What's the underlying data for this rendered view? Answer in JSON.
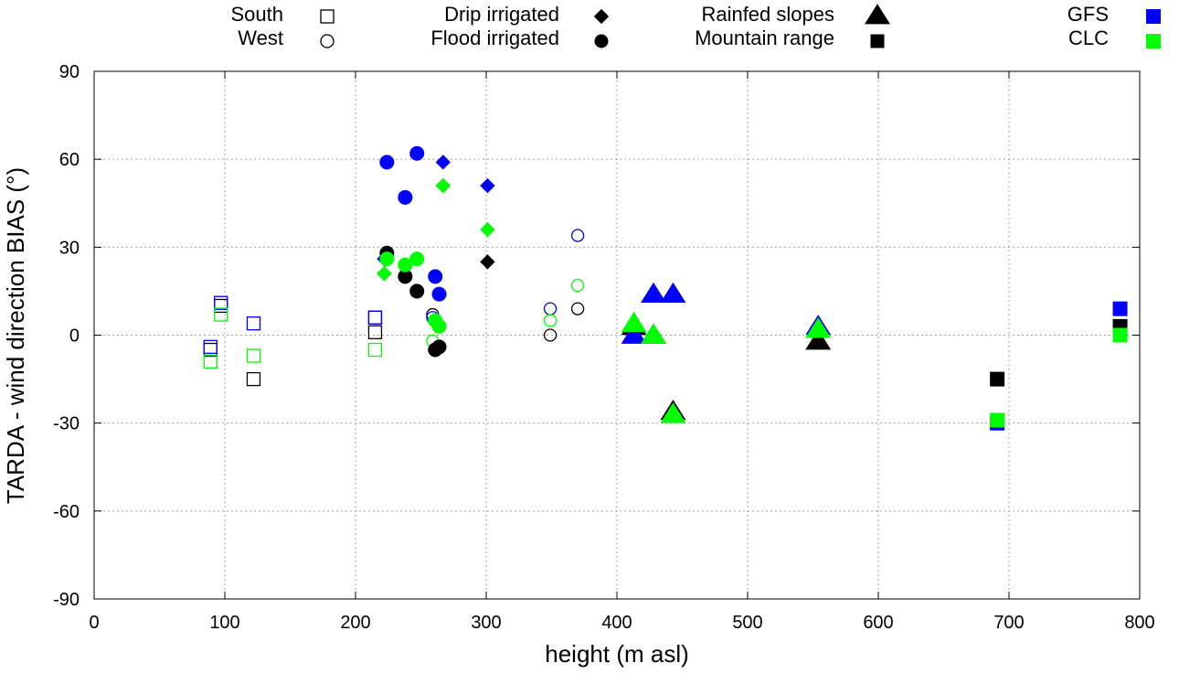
{
  "chart_data": {
    "type": "scatter",
    "title": "",
    "xlabel": "height (m asl)",
    "ylabel": "TARDA - wind direction BIAS (°)",
    "xlim": [
      0,
      800
    ],
    "ylim": [
      -90,
      90
    ],
    "xticks": [
      0,
      100,
      200,
      300,
      400,
      500,
      600,
      700,
      800
    ],
    "yticks": [
      -90,
      -60,
      -30,
      0,
      30,
      60,
      90
    ],
    "grid": true,
    "colors": {
      "TARDA": "#000000",
      "GFS": "#0000ff",
      "CLC": "#00ff00"
    },
    "legend_shapes": [
      {
        "label": "South",
        "shape": "square",
        "filled": false
      },
      {
        "label": "West",
        "shape": "circle",
        "filled": false
      },
      {
        "label": "Drip irrigated",
        "shape": "diamond",
        "filled": true
      },
      {
        "label": "Flood irrigated",
        "shape": "circle",
        "filled": true
      },
      {
        "label": "Rainfed slopes",
        "shape": "triangle",
        "filled": true
      },
      {
        "label": "Mountain range",
        "shape": "square",
        "filled": true
      }
    ],
    "legend_colors": [
      {
        "label": "GFS",
        "color": "#0000ff"
      },
      {
        "label": "CLC",
        "color": "#00ff00"
      }
    ],
    "series": [
      {
        "name": "South - TARDA",
        "shape": "square",
        "filled": false,
        "color": "#000000",
        "points": [
          [
            89,
            -5
          ],
          [
            97,
            10
          ],
          [
            122,
            -15
          ],
          [
            215,
            1
          ],
          [
            215,
            6
          ]
        ]
      },
      {
        "name": "South - GFS",
        "shape": "square",
        "filled": false,
        "color": "#0000ff",
        "points": [
          [
            89,
            -4
          ],
          [
            97,
            11
          ],
          [
            122,
            4
          ],
          [
            215,
            6
          ]
        ]
      },
      {
        "name": "South - CLC",
        "shape": "square",
        "filled": false,
        "color": "#00ff00",
        "points": [
          [
            89,
            -9
          ],
          [
            97,
            7
          ],
          [
            122,
            -7
          ],
          [
            215,
            -5
          ]
        ]
      },
      {
        "name": "West - TARDA",
        "shape": "circle",
        "filled": false,
        "color": "#000000",
        "points": [
          [
            259,
            7
          ],
          [
            349,
            0
          ],
          [
            370,
            9
          ]
        ]
      },
      {
        "name": "West - GFS",
        "shape": "circle",
        "filled": false,
        "color": "#0000ff",
        "points": [
          [
            259,
            6
          ],
          [
            349,
            9
          ],
          [
            370,
            34
          ]
        ]
      },
      {
        "name": "West - CLC",
        "shape": "circle",
        "filled": false,
        "color": "#00ff00",
        "points": [
          [
            259,
            -2
          ],
          [
            349,
            5
          ],
          [
            370,
            17
          ]
        ]
      },
      {
        "name": "Drip irrigated - TARDA",
        "shape": "diamond",
        "filled": true,
        "color": "#000000",
        "points": [
          [
            222,
            21
          ],
          [
            267,
            51
          ],
          [
            301,
            25
          ]
        ]
      },
      {
        "name": "Drip irrigated - GFS",
        "shape": "diamond",
        "filled": true,
        "color": "#0000ff",
        "points": [
          [
            222,
            26
          ],
          [
            267,
            59
          ],
          [
            301,
            51
          ]
        ]
      },
      {
        "name": "Drip irrigated - CLC",
        "shape": "diamond",
        "filled": true,
        "color": "#00ff00",
        "points": [
          [
            222,
            21
          ],
          [
            267,
            51
          ],
          [
            301,
            36
          ]
        ]
      },
      {
        "name": "Flood irrigated - TARDA",
        "shape": "circle",
        "filled": true,
        "color": "#000000",
        "points": [
          [
            224,
            28
          ],
          [
            238,
            20
          ],
          [
            247,
            15
          ],
          [
            261,
            -5
          ],
          [
            264,
            -4
          ]
        ]
      },
      {
        "name": "Flood irrigated - GFS",
        "shape": "circle",
        "filled": true,
        "color": "#0000ff",
        "points": [
          [
            224,
            59
          ],
          [
            238,
            47
          ],
          [
            247,
            62
          ],
          [
            261,
            20
          ],
          [
            264,
            14
          ]
        ]
      },
      {
        "name": "Flood irrigated - CLC",
        "shape": "circle",
        "filled": true,
        "color": "#00ff00",
        "points": [
          [
            224,
            26
          ],
          [
            238,
            24
          ],
          [
            247,
            26
          ],
          [
            261,
            5
          ],
          [
            264,
            3
          ]
        ]
      },
      {
        "name": "Rainfed slopes - TARDA",
        "shape": "triangle",
        "filled": true,
        "color": "#000000",
        "points": [
          [
            413,
            3
          ],
          [
            428,
            0
          ],
          [
            443,
            -26
          ],
          [
            554,
            -2
          ]
        ]
      },
      {
        "name": "Rainfed slopes - GFS",
        "shape": "triangle",
        "filled": true,
        "color": "#0000ff",
        "points": [
          [
            413,
            0
          ],
          [
            428,
            14
          ],
          [
            443,
            14
          ],
          [
            554,
            3
          ]
        ]
      },
      {
        "name": "Rainfed slopes - CLC",
        "shape": "triangle",
        "filled": true,
        "color": "#00ff00",
        "points": [
          [
            413,
            4
          ],
          [
            428,
            0
          ],
          [
            443,
            -27
          ],
          [
            554,
            2
          ]
        ]
      },
      {
        "name": "Mountain range - TARDA",
        "shape": "square",
        "filled": true,
        "color": "#000000",
        "points": [
          [
            691,
            -15
          ],
          [
            785,
            3
          ]
        ]
      },
      {
        "name": "Mountain range - GFS",
        "shape": "square",
        "filled": true,
        "color": "#0000ff",
        "points": [
          [
            691,
            -30
          ],
          [
            785,
            9
          ]
        ]
      },
      {
        "name": "Mountain range - CLC",
        "shape": "square",
        "filled": true,
        "color": "#00ff00",
        "points": [
          [
            691,
            -29
          ],
          [
            785,
            0
          ]
        ]
      }
    ]
  }
}
